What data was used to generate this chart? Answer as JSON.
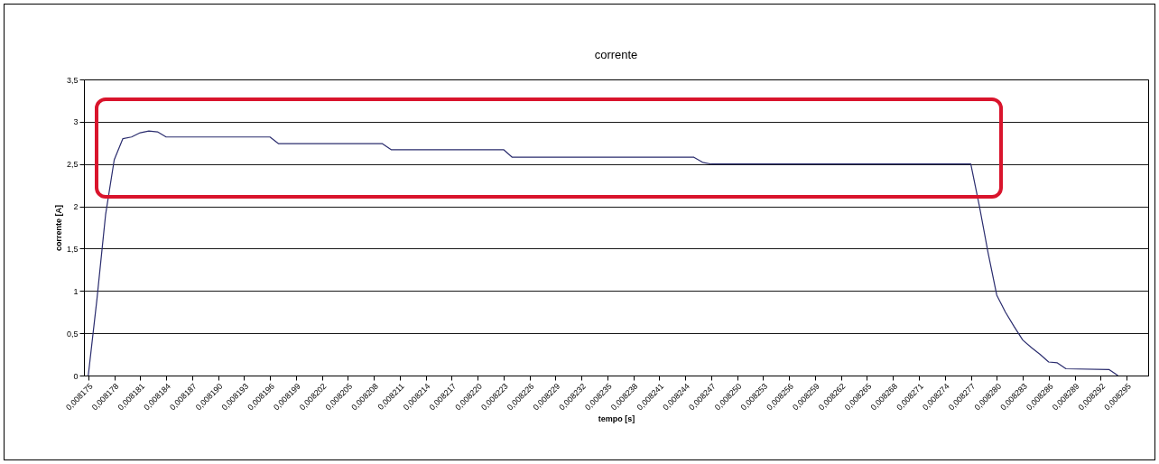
{
  "chart_data": {
    "type": "line",
    "title": "corrente",
    "xlabel": "tempo [s]",
    "ylabel": "corrente [A]",
    "x": [
      0.008175,
      0.008176,
      0.008177,
      0.008178,
      0.008179,
      0.00818,
      0.008181,
      0.008182,
      0.008183,
      0.008184,
      0.008196,
      0.008197,
      0.008209,
      0.00821,
      0.008223,
      0.008224,
      0.008245,
      0.008246,
      0.008247,
      0.008277,
      0.008278,
      0.008279,
      0.00828,
      0.008281,
      0.008282,
      0.008283,
      0.008284,
      0.008285,
      0.008286,
      0.008287,
      0.008288,
      0.008293,
      0.008294
    ],
    "series": [
      {
        "color": "#2a2c6e",
        "values": [
          0,
          0.9,
          1.9,
          2.55,
          2.8,
          2.82,
          2.87,
          2.89,
          2.88,
          2.82,
          2.82,
          2.74,
          2.74,
          2.67,
          2.67,
          2.58,
          2.58,
          2.52,
          2.5,
          2.5,
          2.0,
          1.45,
          0.95,
          0.75,
          0.58,
          0.42,
          0.33,
          0.25,
          0.16,
          0.15,
          0.08,
          0.07,
          0
        ]
      }
    ],
    "xlim": [
      0.0081745,
      0.0082975
    ],
    "xticks": [
      {
        "value": 0.008175,
        "label": "0,008175"
      },
      {
        "value": 0.008178,
        "label": "0,008178"
      },
      {
        "value": 0.008181,
        "label": "0,008181"
      },
      {
        "value": 0.008184,
        "label": "0,008184"
      },
      {
        "value": 0.008187,
        "label": "0,008187"
      },
      {
        "value": 0.00819,
        "label": "0,008190"
      },
      {
        "value": 0.008193,
        "label": "0,008193"
      },
      {
        "value": 0.008196,
        "label": "0,008196"
      },
      {
        "value": 0.008199,
        "label": "0,008199"
      },
      {
        "value": 0.008202,
        "label": "0,008202"
      },
      {
        "value": 0.008205,
        "label": "0,008205"
      },
      {
        "value": 0.008208,
        "label": "0,008208"
      },
      {
        "value": 0.008211,
        "label": "0,008211"
      },
      {
        "value": 0.008214,
        "label": "0,008214"
      },
      {
        "value": 0.008217,
        "label": "0,008217"
      },
      {
        "value": 0.00822,
        "label": "0,008220"
      },
      {
        "value": 0.008223,
        "label": "0,008223"
      },
      {
        "value": 0.008226,
        "label": "0,008226"
      },
      {
        "value": 0.008229,
        "label": "0,008229"
      },
      {
        "value": 0.008232,
        "label": "0,008232"
      },
      {
        "value": 0.008235,
        "label": "0,008235"
      },
      {
        "value": 0.008238,
        "label": "0,008238"
      },
      {
        "value": 0.008241,
        "label": "0,008241"
      },
      {
        "value": 0.008244,
        "label": "0,008244"
      },
      {
        "value": 0.008247,
        "label": "0,008247"
      },
      {
        "value": 0.00825,
        "label": "0,008250"
      },
      {
        "value": 0.008253,
        "label": "0,008253"
      },
      {
        "value": 0.008256,
        "label": "0,008256"
      },
      {
        "value": 0.008259,
        "label": "0,008259"
      },
      {
        "value": 0.008262,
        "label": "0,008262"
      },
      {
        "value": 0.008265,
        "label": "0,008265"
      },
      {
        "value": 0.008268,
        "label": "0,008268"
      },
      {
        "value": 0.008271,
        "label": "0,008271"
      },
      {
        "value": 0.008274,
        "label": "0,008274"
      },
      {
        "value": 0.008277,
        "label": "0,008277"
      },
      {
        "value": 0.00828,
        "label": "0,008280"
      },
      {
        "value": 0.008283,
        "label": "0,008283"
      },
      {
        "value": 0.008286,
        "label": "0,008286"
      },
      {
        "value": 0.008289,
        "label": "0,008289"
      },
      {
        "value": 0.008292,
        "label": "0,008292"
      },
      {
        "value": 0.008295,
        "label": "0,008295"
      }
    ],
    "ylim": [
      0,
      3.5
    ],
    "yticks": [
      0,
      {
        "value": 0.5,
        "label": "0,5"
      },
      1,
      {
        "value": 1.5,
        "label": "1,5"
      },
      2,
      {
        "value": 2.5,
        "label": "2,5"
      },
      3,
      {
        "value": 3.5,
        "label": "3,5"
      }
    ],
    "grid": "y"
  }
}
